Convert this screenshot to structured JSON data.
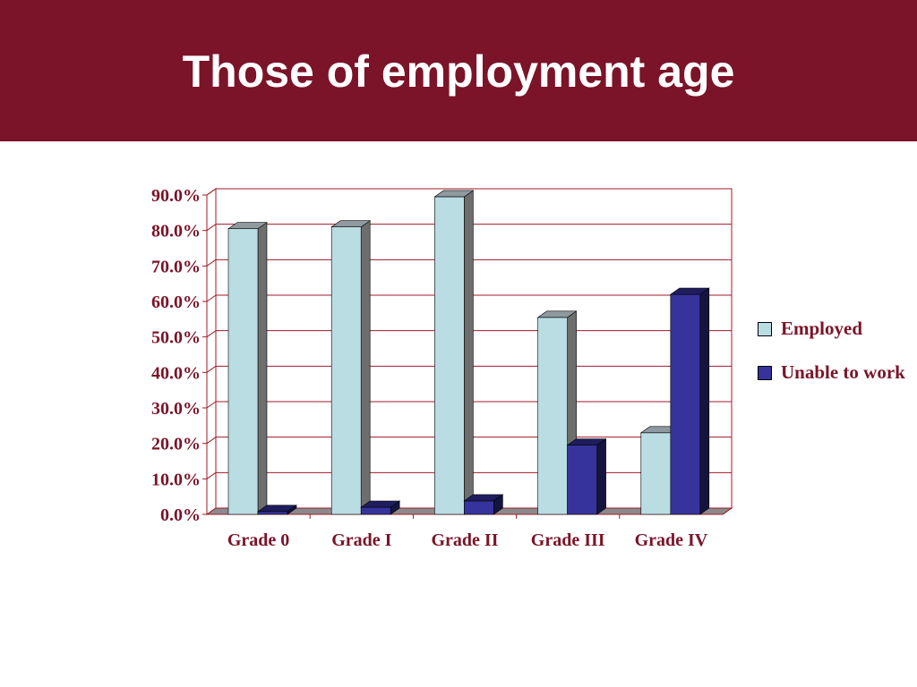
{
  "slide": {
    "title": "Those of employment age"
  },
  "colors": {
    "header": "#7b1429",
    "employed": "#b9dde3",
    "unable": "#36349c",
    "text": "#7b1429",
    "grid": "#a11a2a"
  },
  "chart_data": {
    "type": "bar",
    "categories": [
      "Grade 0",
      "Grade I",
      "Grade II",
      "Grade III",
      "Grade IV"
    ],
    "series": [
      {
        "name": "Employed",
        "values": [
          80.5,
          81.0,
          89.5,
          55.5,
          23.0
        ]
      },
      {
        "name": "Unable to work",
        "values": [
          0.8,
          2.0,
          3.8,
          19.5,
          62.0
        ]
      }
    ],
    "y_ticks": [
      "0.0%",
      "10.0%",
      "20.0%",
      "30.0%",
      "40.0%",
      "50.0%",
      "60.0%",
      "70.0%",
      "80.0%",
      "90.0%"
    ],
    "ylim": [
      0,
      90
    ],
    "grid": true,
    "legend_position": "right",
    "style": "3d-clustered-column"
  }
}
